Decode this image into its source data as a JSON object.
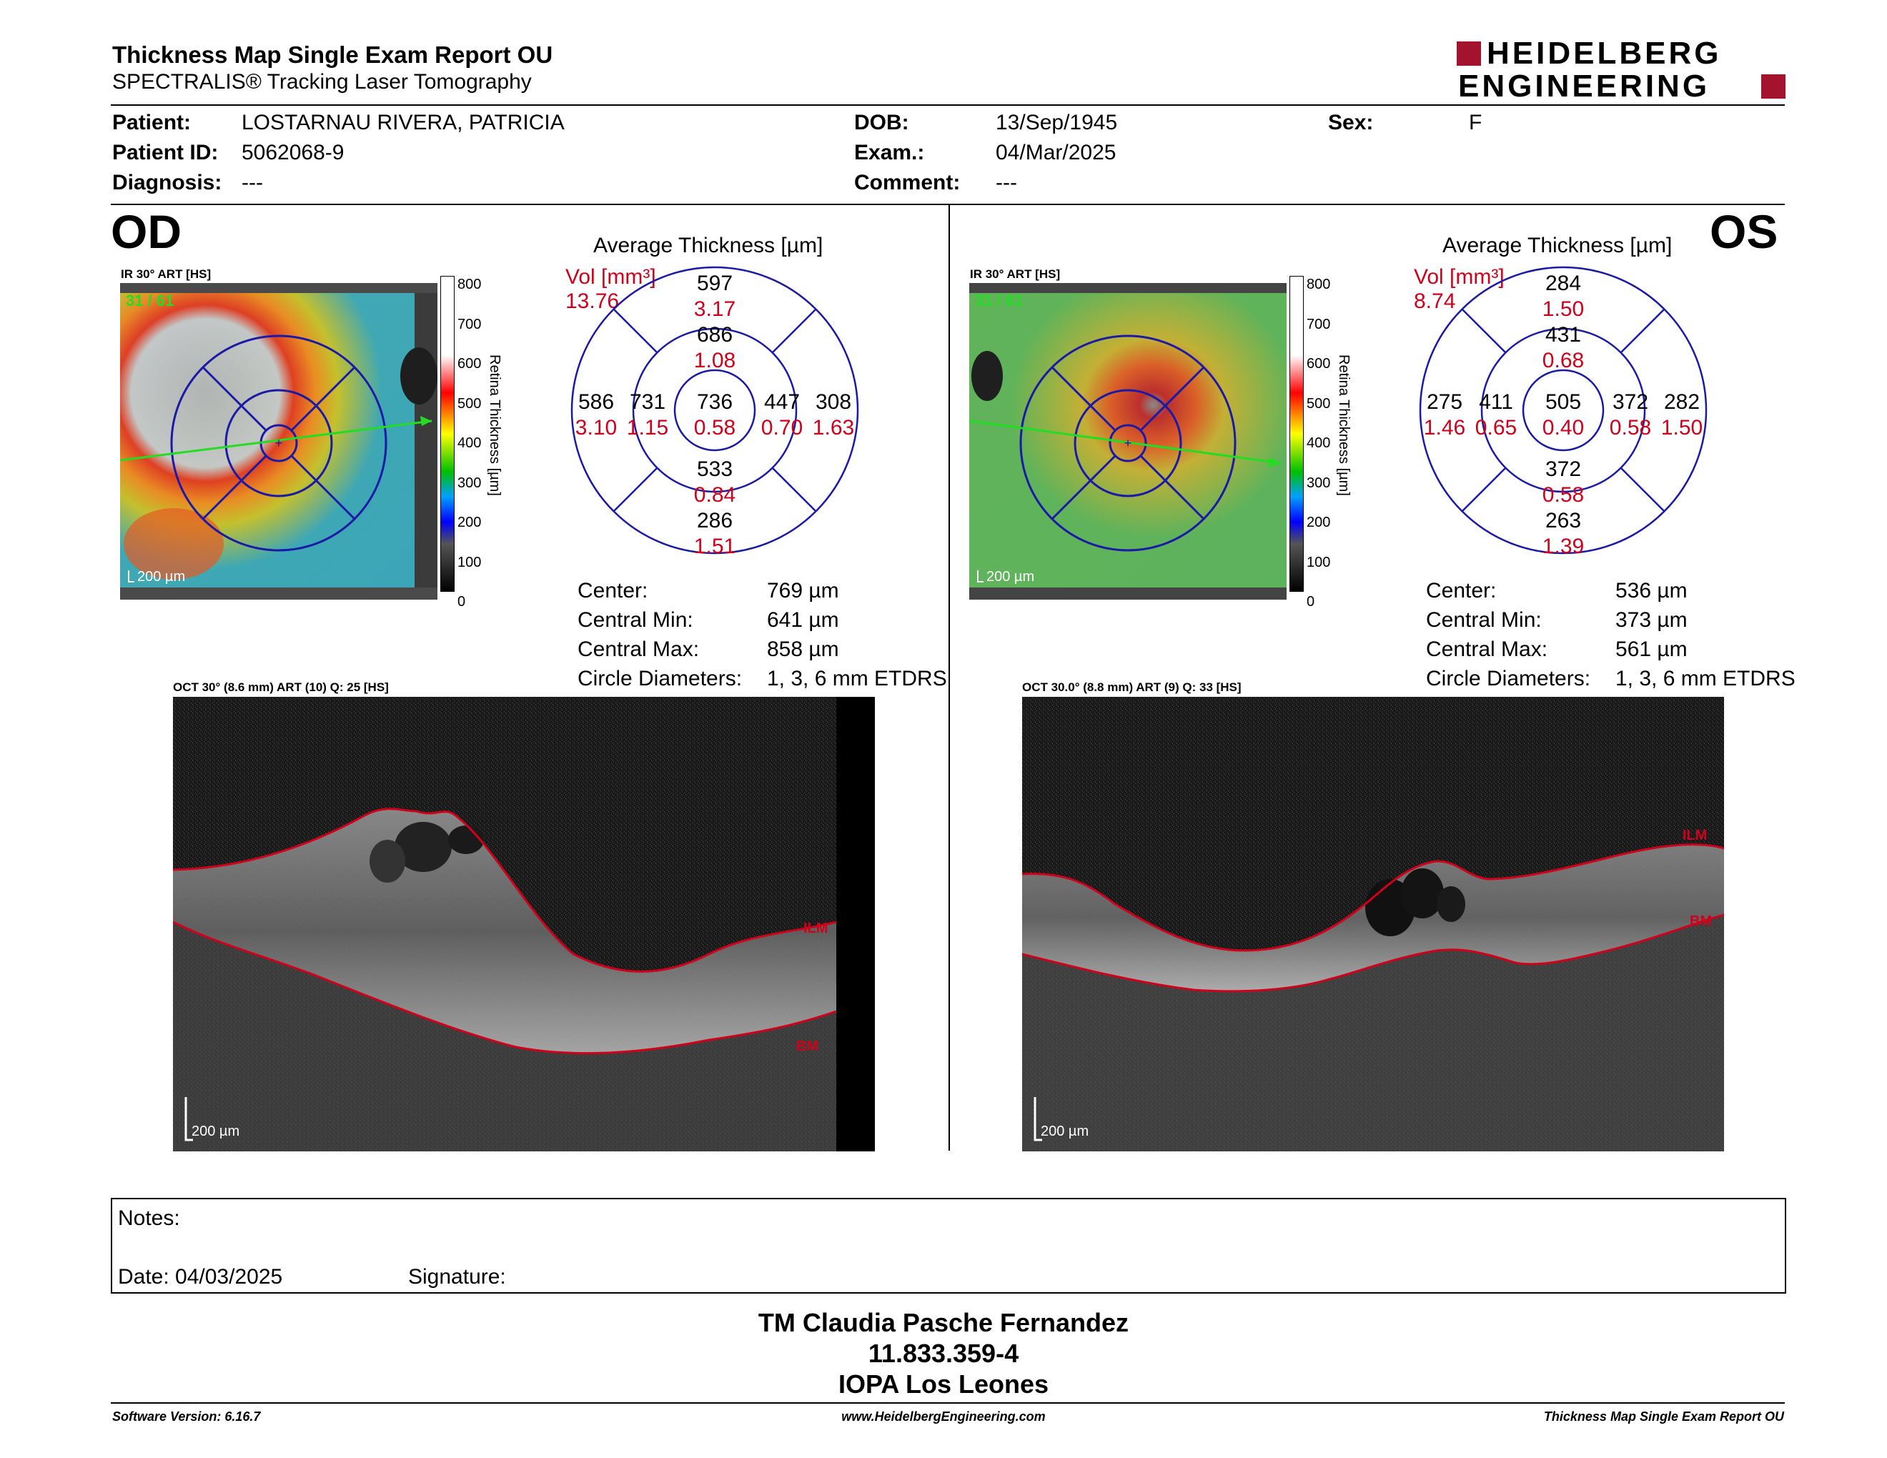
{
  "header": {
    "title": "Thickness Map Single Exam Report OU",
    "subtitle": "SPECTRALIS® Tracking Laser Tomography",
    "logo_line1": "HEIDELBERG",
    "logo_line2": "ENGINEERING"
  },
  "patient": {
    "patient_label": "Patient:",
    "patient_value": "LOSTARNAU RIVERA, PATRICIA",
    "id_label": "Patient ID:",
    "id_value": "5062068-9",
    "diag_label": "Diagnosis:",
    "diag_value": "---",
    "dob_label": "DOB:",
    "dob_value": "13/Sep/1945",
    "exam_label": "Exam.:",
    "exam_value": "04/Mar/2025",
    "comment_label": "Comment:",
    "comment_value": "---",
    "sex_label": "Sex:",
    "sex_value": "F"
  },
  "od": {
    "eye": "OD",
    "ir_label": "IR 30° ART [HS]",
    "frame": "31 / 61",
    "scale": "200 µm",
    "colorbar_ticks": [
      "800",
      "700",
      "600",
      "500",
      "400",
      "300",
      "200",
      "100",
      "0"
    ],
    "colorbar_title": "Retina Thickness [µm]",
    "avg_title": "Average Thickness [µm]",
    "vol_label": "Vol [mm³]",
    "vol_value": "13.76",
    "sectors": {
      "center": {
        "t": "736",
        "v": "0.58"
      },
      "inner_sup": {
        "t": "686",
        "v": "1.08"
      },
      "inner_inf": {
        "t": "533",
        "v": "0.84"
      },
      "inner_left": {
        "t": "731",
        "v": "1.15"
      },
      "inner_right": {
        "t": "447",
        "v": "0.70"
      },
      "outer_sup": {
        "t": "597",
        "v": "3.17"
      },
      "outer_inf": {
        "t": "286",
        "v": "1.51"
      },
      "outer_left": {
        "t": "586",
        "v": "3.10"
      },
      "outer_right": {
        "t": "308",
        "v": "1.63"
      }
    },
    "stats": {
      "center_label": "Center:",
      "center_value": "769 µm",
      "min_label": "Central Min:",
      "min_value": "641 µm",
      "max_label": "Central Max:",
      "max_value": "858 µm",
      "diam_label": "Circle Diameters:",
      "diam_value": "1, 3, 6 mm ETDRS"
    },
    "oct_label": "OCT 30° (8.6 mm) ART (10) Q: 25 [HS]",
    "ilm": "ILM",
    "bm": "BM",
    "oct_scale": "200 µm"
  },
  "os": {
    "eye": "OS",
    "ir_label": "IR 30° ART [HS]",
    "frame": "31 / 61",
    "scale": "200 µm",
    "colorbar_ticks": [
      "800",
      "700",
      "600",
      "500",
      "400",
      "300",
      "200",
      "100",
      "0"
    ],
    "colorbar_title": "Retina Thickness [µm]",
    "avg_title": "Average Thickness [µm]",
    "vol_label": "Vol [mm³]",
    "vol_value": "8.74",
    "sectors": {
      "center": {
        "t": "505",
        "v": "0.40"
      },
      "inner_sup": {
        "t": "431",
        "v": "0.68"
      },
      "inner_inf": {
        "t": "372",
        "v": "0.58"
      },
      "inner_left": {
        "t": "411",
        "v": "0.65"
      },
      "inner_right": {
        "t": "372",
        "v": "0.58"
      },
      "outer_sup": {
        "t": "284",
        "v": "1.50"
      },
      "outer_inf": {
        "t": "263",
        "v": "1.39"
      },
      "outer_left": {
        "t": "275",
        "v": "1.46"
      },
      "outer_right": {
        "t": "282",
        "v": "1.50"
      }
    },
    "stats": {
      "center_label": "Center:",
      "center_value": "536 µm",
      "min_label": "Central Min:",
      "min_value": "373 µm",
      "max_label": "Central Max:",
      "max_value": "561 µm",
      "diam_label": "Circle Diameters:",
      "diam_value": "1, 3, 6 mm ETDRS"
    },
    "oct_label": "OCT 30.0° (8.8 mm) ART (9) Q: 33 [HS]",
    "ilm": "ILM",
    "bm": "BM",
    "oct_scale": "200 µm"
  },
  "notes": {
    "notes_label": "Notes:",
    "date_label": "Date: 04/03/2025",
    "signature_label": "Signature:"
  },
  "signature_block": {
    "line1": "TM Claudia Pasche Fernandez",
    "line2": "11.833.359-4",
    "line3": "IOPA Los Leones"
  },
  "footer": {
    "left": "Software Version: 6.16.7",
    "center": "www.HeidelbergEngineering.com",
    "right": "Thickness Map Single Exam Report OU"
  },
  "colors": {
    "red": "#d0021b",
    "blue": "#1a1aa6",
    "logo": "#a3132d"
  }
}
